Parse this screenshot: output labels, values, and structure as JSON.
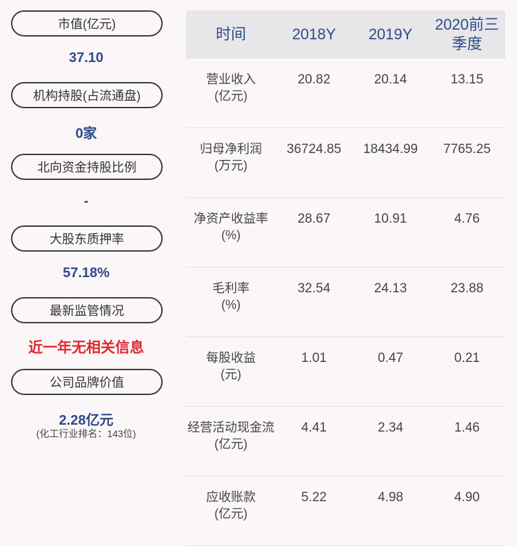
{
  "left_panel": {
    "items": [
      {
        "label": "市值(亿元)",
        "value": "37.10"
      },
      {
        "label": "机构持股(占流通盘)",
        "value": "0家"
      },
      {
        "label": "北向资金持股比例",
        "value": "-"
      },
      {
        "label": "大股东质押率",
        "value": "57.18%"
      },
      {
        "label": "最新监管情况",
        "value": "近一年无相关信息"
      },
      {
        "label": "公司品牌价值",
        "value": "2.28亿元",
        "note": "(化工行业排名：143位)"
      }
    ],
    "colors": {
      "value": "#2e4a86",
      "alert": "#e0292e"
    }
  },
  "table": {
    "headers": [
      "时间",
      "2018Y",
      "2019Y",
      "2020前三季度"
    ],
    "rows": [
      {
        "label": "营业收入",
        "unit": "(亿元)",
        "values": [
          "20.82",
          "20.14",
          "13.15"
        ]
      },
      {
        "label": "归母净利润",
        "unit": "(万元)",
        "values": [
          "36724.85",
          "18434.99",
          "7765.25"
        ]
      },
      {
        "label": "净资产收益率",
        "unit": "(%)",
        "values": [
          "28.67",
          "10.91",
          "4.76"
        ]
      },
      {
        "label": "毛利率",
        "unit": "(%)",
        "values": [
          "32.54",
          "24.13",
          "23.88"
        ]
      },
      {
        "label": "每股收益",
        "unit": "(元)",
        "values": [
          "1.01",
          "0.47",
          "0.21"
        ]
      },
      {
        "label": "经营活动现金流",
        "unit": "(亿元)",
        "values": [
          "4.41",
          "2.34",
          "1.46"
        ]
      },
      {
        "label": "应收账款",
        "unit": "(亿元)",
        "values": [
          "5.22",
          "4.98",
          "4.90"
        ]
      }
    ]
  }
}
